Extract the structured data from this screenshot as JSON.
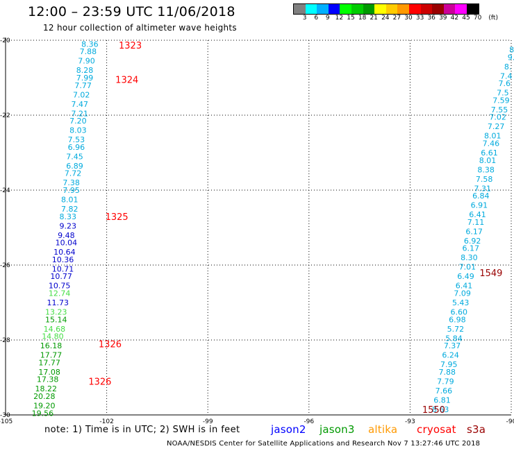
{
  "header": {
    "title": "12:00 – 23:59 UTC 11/06/2018",
    "subtitle": "12 hour collection of altimeter wave heights"
  },
  "legend": {
    "colors": [
      "#808080",
      "#00ffff",
      "#00b0ff",
      "#0000ff",
      "#00ff00",
      "#00cc00",
      "#009900",
      "#ffff00",
      "#ffcc00",
      "#ff9900",
      "#ff0000",
      "#cc0000",
      "#990000",
      "#cc0099",
      "#ff00ff",
      "#000000"
    ],
    "ticks": [
      "3",
      "6",
      "9",
      "12",
      "15",
      "18",
      "21",
      "24",
      "27",
      "30",
      "33",
      "36",
      "39",
      "42",
      "45",
      "70",
      "(ft)"
    ]
  },
  "footer": {
    "note": "note: 1) Time is in UTC; 2) SWH is in feet",
    "credit": "NOAA/NESDIS Center for Satellite Applications and Research    Nov  7 13:27:46 UTC 2018",
    "satellites": [
      {
        "name": "jason2",
        "color": "#0000ff"
      },
      {
        "name": "jason3",
        "color": "#009900"
      },
      {
        "name": "altika",
        "color": "#ff9900"
      },
      {
        "name": "cryosat",
        "color": "#ff0000"
      },
      {
        "name": "s3a",
        "color": "#990000"
      }
    ]
  },
  "chart_data": {
    "type": "scatter",
    "xlim": [
      -105,
      -90
    ],
    "ylim": [
      -30,
      -20
    ],
    "x_ticks": [
      "-105",
      "-102",
      "-99",
      "-96",
      "-93",
      "-90"
    ],
    "y_ticks": [
      "-20",
      "-22",
      "-24",
      "-26",
      "-28",
      "-30"
    ],
    "grid": true,
    "series": [
      {
        "name": "cryosat",
        "color": "#ff0000",
        "pass_labels": [
          {
            "text": "1323",
            "x": -101.3,
            "y": -20.13
          },
          {
            "text": "1324",
            "x": -101.4,
            "y": -21.05
          },
          {
            "text": "1325",
            "x": -101.7,
            "y": -24.7
          },
          {
            "text": "1326",
            "x": -101.9,
            "y": -28.1
          },
          {
            "text": "1326",
            "x": -102.2,
            "y": -29.1
          }
        ],
        "points": [
          {
            "lon": -102.5,
            "lat": -20.1,
            "swh": "8.36",
            "color": "#00aadd"
          },
          {
            "lon": -102.55,
            "lat": -20.3,
            "swh": "7.88",
            "color": "#00aadd"
          },
          {
            "lon": -102.6,
            "lat": -20.55,
            "swh": "7.90",
            "color": "#00aadd"
          },
          {
            "lon": -102.65,
            "lat": -20.8,
            "swh": "8.28",
            "color": "#00aadd"
          },
          {
            "lon": -102.65,
            "lat": -21.0,
            "swh": "7.99",
            "color": "#00aadd"
          },
          {
            "lon": -102.7,
            "lat": -21.2,
            "swh": "7.77",
            "color": "#00aadd"
          },
          {
            "lon": -102.75,
            "lat": -21.45,
            "swh": "7.02",
            "color": "#00aadd"
          },
          {
            "lon": -102.8,
            "lat": -21.7,
            "swh": "7.47",
            "color": "#00aadd"
          },
          {
            "lon": -102.8,
            "lat": -21.95,
            "swh": "7.21",
            "color": "#00aadd"
          },
          {
            "lon": -102.85,
            "lat": -22.15,
            "swh": "7.20",
            "color": "#00aadd"
          },
          {
            "lon": -102.85,
            "lat": -22.4,
            "swh": "8.03",
            "color": "#00aadd"
          },
          {
            "lon": -102.9,
            "lat": -22.65,
            "swh": "7.53",
            "color": "#00aadd"
          },
          {
            "lon": -102.9,
            "lat": -22.85,
            "swh": "6.96",
            "color": "#00aadd"
          },
          {
            "lon": -102.95,
            "lat": -23.1,
            "swh": "7.45",
            "color": "#00aadd"
          },
          {
            "lon": -102.95,
            "lat": -23.35,
            "swh": "6.89",
            "color": "#00aadd"
          },
          {
            "lon": -103.0,
            "lat": -23.55,
            "swh": "7.72",
            "color": "#00aadd"
          },
          {
            "lon": -103.05,
            "lat": -23.8,
            "swh": "7.38",
            "color": "#00aadd"
          },
          {
            "lon": -103.05,
            "lat": -24.0,
            "swh": "7.95",
            "color": "#00aadd"
          },
          {
            "lon": -103.1,
            "lat": -24.25,
            "swh": "8.01",
            "color": "#00aadd"
          },
          {
            "lon": -103.1,
            "lat": -24.5,
            "swh": "7.82",
            "color": "#00aadd"
          },
          {
            "lon": -103.15,
            "lat": -24.7,
            "swh": "8.33",
            "color": "#00aadd"
          },
          {
            "lon": -103.15,
            "lat": -24.95,
            "swh": "9.23",
            "color": "#0000cc"
          },
          {
            "lon": -103.2,
            "lat": -25.2,
            "swh": "9.48",
            "color": "#0000cc"
          },
          {
            "lon": -103.2,
            "lat": -25.4,
            "swh": "10.04",
            "color": "#0000cc"
          },
          {
            "lon": -103.25,
            "lat": -25.65,
            "swh": "10.64",
            "color": "#0000cc"
          },
          {
            "lon": -103.3,
            "lat": -25.85,
            "swh": "10.36",
            "color": "#0000cc"
          },
          {
            "lon": -103.3,
            "lat": -26.1,
            "swh": "10.71",
            "color": "#0000cc"
          },
          {
            "lon": -103.35,
            "lat": -26.3,
            "swh": "10.77",
            "color": "#0000cc"
          },
          {
            "lon": -103.4,
            "lat": -26.55,
            "swh": "10.75",
            "color": "#0000cc"
          },
          {
            "lon": -103.4,
            "lat": -26.75,
            "swh": "12.74",
            "color": "#44dd44"
          },
          {
            "lon": -103.45,
            "lat": -27.0,
            "swh": "11.73",
            "color": "#0000cc"
          },
          {
            "lon": -103.5,
            "lat": -27.25,
            "swh": "13.23",
            "color": "#44dd44"
          },
          {
            "lon": -103.5,
            "lat": -27.45,
            "swh": "15.14",
            "color": "#009900"
          },
          {
            "lon": -103.55,
            "lat": -27.7,
            "swh": "14.68",
            "color": "#44dd44"
          },
          {
            "lon": -103.6,
            "lat": -27.9,
            "swh": "14.80",
            "color": "#44dd44"
          },
          {
            "lon": -103.65,
            "lat": -28.15,
            "swh": "16.18",
            "color": "#009900"
          },
          {
            "lon": -103.65,
            "lat": -28.4,
            "swh": "17.77",
            "color": "#009900"
          },
          {
            "lon": -103.7,
            "lat": -28.6,
            "swh": "17.77",
            "color": "#009900"
          },
          {
            "lon": -103.7,
            "lat": -28.85,
            "swh": "17.08",
            "color": "#009900"
          },
          {
            "lon": -103.75,
            "lat": -29.05,
            "swh": "17.38",
            "color": "#009900"
          },
          {
            "lon": -103.8,
            "lat": -29.3,
            "swh": "18.22",
            "color": "#009900"
          },
          {
            "lon": -103.85,
            "lat": -29.5,
            "swh": "20.28",
            "color": "#009900"
          },
          {
            "lon": -103.85,
            "lat": -29.75,
            "swh": "19.20",
            "color": "#009900"
          },
          {
            "lon": -103.9,
            "lat": -29.95,
            "swh": "19.56",
            "color": "#009900"
          }
        ]
      },
      {
        "name": "s3a",
        "color": "#990000",
        "pass_labels": [
          {
            "text": "1549",
            "x": -90.6,
            "y": -26.2
          },
          {
            "text": "1550",
            "x": -92.3,
            "y": -29.85
          }
        ],
        "points": [
          {
            "lon": -89.95,
            "lat": -20.25,
            "swh": "8.",
            "color": "#00aadd"
          },
          {
            "lon": -90.0,
            "lat": -20.45,
            "swh": "9.",
            "color": "#00aadd"
          },
          {
            "lon": -90.1,
            "lat": -20.7,
            "swh": "8.",
            "color": "#00aadd"
          },
          {
            "lon": -90.15,
            "lat": -20.95,
            "swh": "7.4",
            "color": "#00aadd"
          },
          {
            "lon": -90.2,
            "lat": -21.15,
            "swh": "7.6",
            "color": "#00aadd"
          },
          {
            "lon": -90.25,
            "lat": -21.4,
            "swh": "7.5",
            "color": "#00aadd"
          },
          {
            "lon": -90.3,
            "lat": -21.6,
            "swh": "7.59",
            "color": "#00aadd"
          },
          {
            "lon": -90.35,
            "lat": -21.85,
            "swh": "7.55",
            "color": "#00aadd"
          },
          {
            "lon": -90.4,
            "lat": -22.05,
            "swh": "7.02",
            "color": "#00aadd"
          },
          {
            "lon": -90.45,
            "lat": -22.3,
            "swh": "7.27",
            "color": "#00aadd"
          },
          {
            "lon": -90.55,
            "lat": -22.55,
            "swh": "8.01",
            "color": "#00aadd"
          },
          {
            "lon": -90.6,
            "lat": -22.75,
            "swh": "7.46",
            "color": "#00aadd"
          },
          {
            "lon": -90.65,
            "lat": -23.0,
            "swh": "6.61",
            "color": "#00aadd"
          },
          {
            "lon": -90.7,
            "lat": -23.2,
            "swh": "8.01",
            "color": "#00aadd"
          },
          {
            "lon": -90.75,
            "lat": -23.45,
            "swh": "8.38",
            "color": "#00aadd"
          },
          {
            "lon": -90.8,
            "lat": -23.7,
            "swh": "7.58",
            "color": "#00aadd"
          },
          {
            "lon": -90.85,
            "lat": -23.95,
            "swh": "7.31",
            "color": "#00aadd"
          },
          {
            "lon": -90.9,
            "lat": -24.15,
            "swh": "6.84",
            "color": "#00aadd"
          },
          {
            "lon": -90.95,
            "lat": -24.4,
            "swh": "6.91",
            "color": "#00aadd"
          },
          {
            "lon": -91.0,
            "lat": -24.65,
            "swh": "6.41",
            "color": "#00aadd"
          },
          {
            "lon": -91.05,
            "lat": -24.85,
            "swh": "7.11",
            "color": "#00aadd"
          },
          {
            "lon": -91.1,
            "lat": -25.1,
            "swh": "6.17",
            "color": "#00aadd"
          },
          {
            "lon": -91.15,
            "lat": -25.35,
            "swh": "6.92",
            "color": "#00aadd"
          },
          {
            "lon": -91.2,
            "lat": -25.55,
            "swh": "6.17",
            "color": "#00aadd"
          },
          {
            "lon": -91.25,
            "lat": -25.8,
            "swh": "8.30",
            "color": "#00aadd"
          },
          {
            "lon": -91.3,
            "lat": -26.05,
            "swh": "7.01",
            "color": "#00aadd"
          },
          {
            "lon": -91.35,
            "lat": -26.3,
            "swh": "6.49",
            "color": "#00aadd"
          },
          {
            "lon": -91.4,
            "lat": -26.55,
            "swh": "6.41",
            "color": "#00aadd"
          },
          {
            "lon": -91.45,
            "lat": -26.75,
            "swh": "7.09",
            "color": "#00aadd"
          },
          {
            "lon": -91.5,
            "lat": -27.0,
            "swh": "5.43",
            "color": "#00aadd"
          },
          {
            "lon": -91.55,
            "lat": -27.25,
            "swh": "6.60",
            "color": "#00aadd"
          },
          {
            "lon": -91.6,
            "lat": -27.45,
            "swh": "6.98",
            "color": "#00aadd"
          },
          {
            "lon": -91.65,
            "lat": -27.7,
            "swh": "5.72",
            "color": "#00aadd"
          },
          {
            "lon": -91.7,
            "lat": -27.95,
            "swh": "5.84",
            "color": "#00aadd"
          },
          {
            "lon": -91.75,
            "lat": -28.15,
            "swh": "7.37",
            "color": "#00aadd"
          },
          {
            "lon": -91.8,
            "lat": -28.4,
            "swh": "6.24",
            "color": "#00aadd"
          },
          {
            "lon": -91.85,
            "lat": -28.65,
            "swh": "7.95",
            "color": "#00aadd"
          },
          {
            "lon": -91.9,
            "lat": -28.85,
            "swh": "7.88",
            "color": "#00aadd"
          },
          {
            "lon": -91.95,
            "lat": -29.1,
            "swh": "7.79",
            "color": "#00aadd"
          },
          {
            "lon": -92.0,
            "lat": -29.35,
            "swh": "7.66",
            "color": "#00aadd"
          },
          {
            "lon": -92.05,
            "lat": -29.6,
            "swh": "6.81",
            "color": "#00aadd"
          },
          {
            "lon": -92.1,
            "lat": -29.85,
            "swh": "8.63",
            "color": "#00aadd"
          }
        ]
      }
    ]
  }
}
